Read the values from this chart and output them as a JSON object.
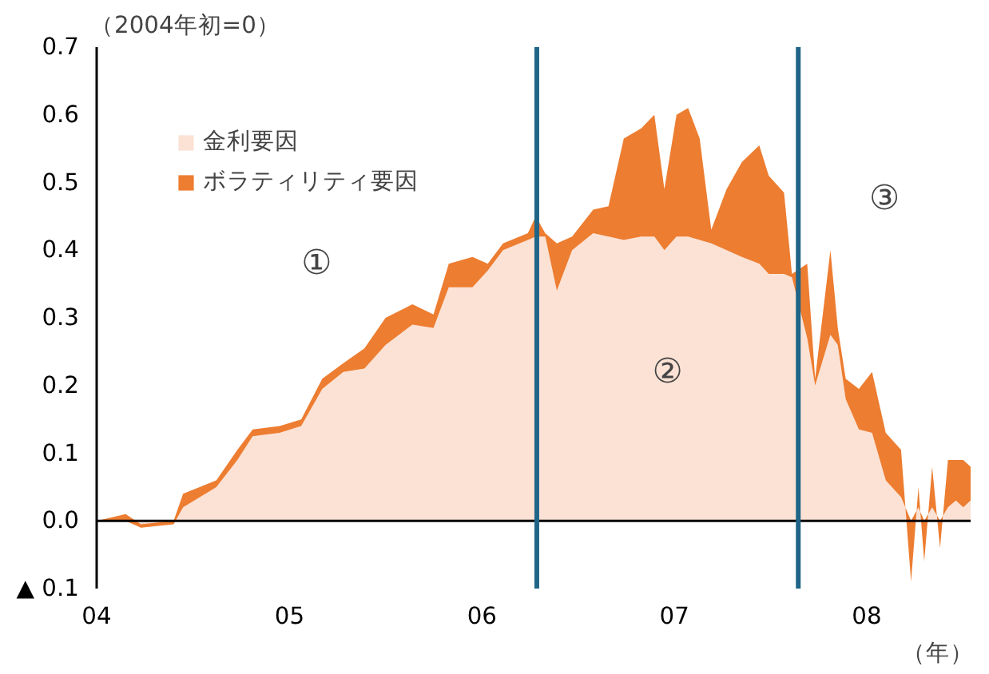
{
  "chart_data": {
    "type": "area",
    "stacked": true,
    "ylabel": "（2004年初=0）",
    "xlabel": "（年）",
    "x": [
      "2004-01-01",
      "2004-02-25",
      "2004-03-25",
      "2004-05-26",
      "2004-06-13",
      "2004-08-15",
      "2004-09-24",
      "2004-10-23",
      "2004-12-13",
      "2005-01-23",
      "2005-03-04",
      "2005-04-13",
      "2005-05-23",
      "2005-07-02",
      "2005-08-22",
      "2005-10-01",
      "2005-10-30",
      "2005-12-14",
      "2006-01-12",
      "2006-02-10",
      "2006-03-29",
      "2006-04-13",
      "2006-05-01",
      "2006-05-23",
      "2006-06-21",
      "2006-07-31",
      "2006-08-29",
      "2006-09-27",
      "2006-10-30",
      "2006-11-24",
      "2006-12-13",
      "2007-01-05",
      "2007-01-27",
      "2007-02-18",
      "2007-03-12",
      "2007-04-10",
      "2007-05-09",
      "2007-06-11",
      "2007-06-29",
      "2007-07-28",
      "2007-08-12",
      "2007-09-10",
      "2007-09-25",
      "2007-10-24",
      "2007-11-07",
      "2007-11-22",
      "2007-12-17",
      "2008-01-11",
      "2008-02-06",
      "2008-03-06",
      "2008-03-25",
      "2008-04-08",
      "2008-04-19",
      "2008-05-04",
      "2008-05-19",
      "2008-06-03",
      "2008-06-18",
      "2008-07-02",
      "2008-07-16"
    ],
    "series": [
      {
        "name": "金利要因",
        "color": "#fbe2d5",
        "values": [
          0,
          0,
          -0.01,
          -0.005,
          0.02,
          0.05,
          0.09,
          0.125,
          0.13,
          0.14,
          0.195,
          0.22,
          0.225,
          0.26,
          0.29,
          0.285,
          0.345,
          0.345,
          0.37,
          0.4,
          0.415,
          0.42,
          0.42,
          0.34,
          0.4,
          0.425,
          0.42,
          0.415,
          0.42,
          0.42,
          0.4,
          0.42,
          0.42,
          0.415,
          0.41,
          0.4,
          0.39,
          0.38,
          0.365,
          0.365,
          0.36,
          0.27,
          0.2,
          0.275,
          0.26,
          0.18,
          0.135,
          0.13,
          0.06,
          0.035,
          0,
          0.02,
          0,
          0.02,
          0,
          0.02,
          0.03,
          0.02,
          0.03
        ]
      },
      {
        "name": "ボラティリティ要因",
        "color": "#ed7d31",
        "values": [
          0,
          0.01,
          0.005,
          0.005,
          0.02,
          0.01,
          0.015,
          0.01,
          0.01,
          0.01,
          0.015,
          0.013,
          0.03,
          0.04,
          0.03,
          0.02,
          0.035,
          0.045,
          0.01,
          0.01,
          0.01,
          0.03,
          0.005,
          0.07,
          0.02,
          0.035,
          0.045,
          0.15,
          0.16,
          0.18,
          0.09,
          0.18,
          0.19,
          0.15,
          0.02,
          0.09,
          0.14,
          0.175,
          0.145,
          0.12,
          0.005,
          0.11,
          0.01,
          0.125,
          0.025,
          0.03,
          0.06,
          0.09,
          0.07,
          0.07,
          -0.09,
          0.03,
          -0.06,
          0.06,
          -0.04,
          0.07,
          0.06,
          0.07,
          0.05
        ]
      }
    ],
    "xlim": [
      "2004-01-01",
      "2008-07-16"
    ],
    "xticks": [
      {
        "value": "2004-01-01",
        "label": "04"
      },
      {
        "value": "2005-01-01",
        "label": "05"
      },
      {
        "value": "2006-01-01",
        "label": "06"
      },
      {
        "value": "2007-01-01",
        "label": "07"
      },
      {
        "value": "2008-01-01",
        "label": "08"
      }
    ],
    "ylim": [
      -0.1,
      0.7
    ],
    "yticks": [
      {
        "value": -0.1,
        "label": "▲ 0.1"
      },
      {
        "value": 0,
        "label": "0.0"
      },
      0.1,
      0.2,
      0.3,
      0.4,
      0.5,
      0.6,
      0.7
    ],
    "ref_lines": [
      {
        "axis": "y",
        "value": 0,
        "color": "#000000"
      },
      {
        "axis": "x",
        "value": "2006-04-15",
        "color": "#1f6587"
      },
      {
        "axis": "x",
        "value": "2007-08-24",
        "color": "#1f6587"
      }
    ],
    "annotations": [
      "①",
      "②",
      "③"
    ],
    "legend": "top left",
    "grid": false
  }
}
